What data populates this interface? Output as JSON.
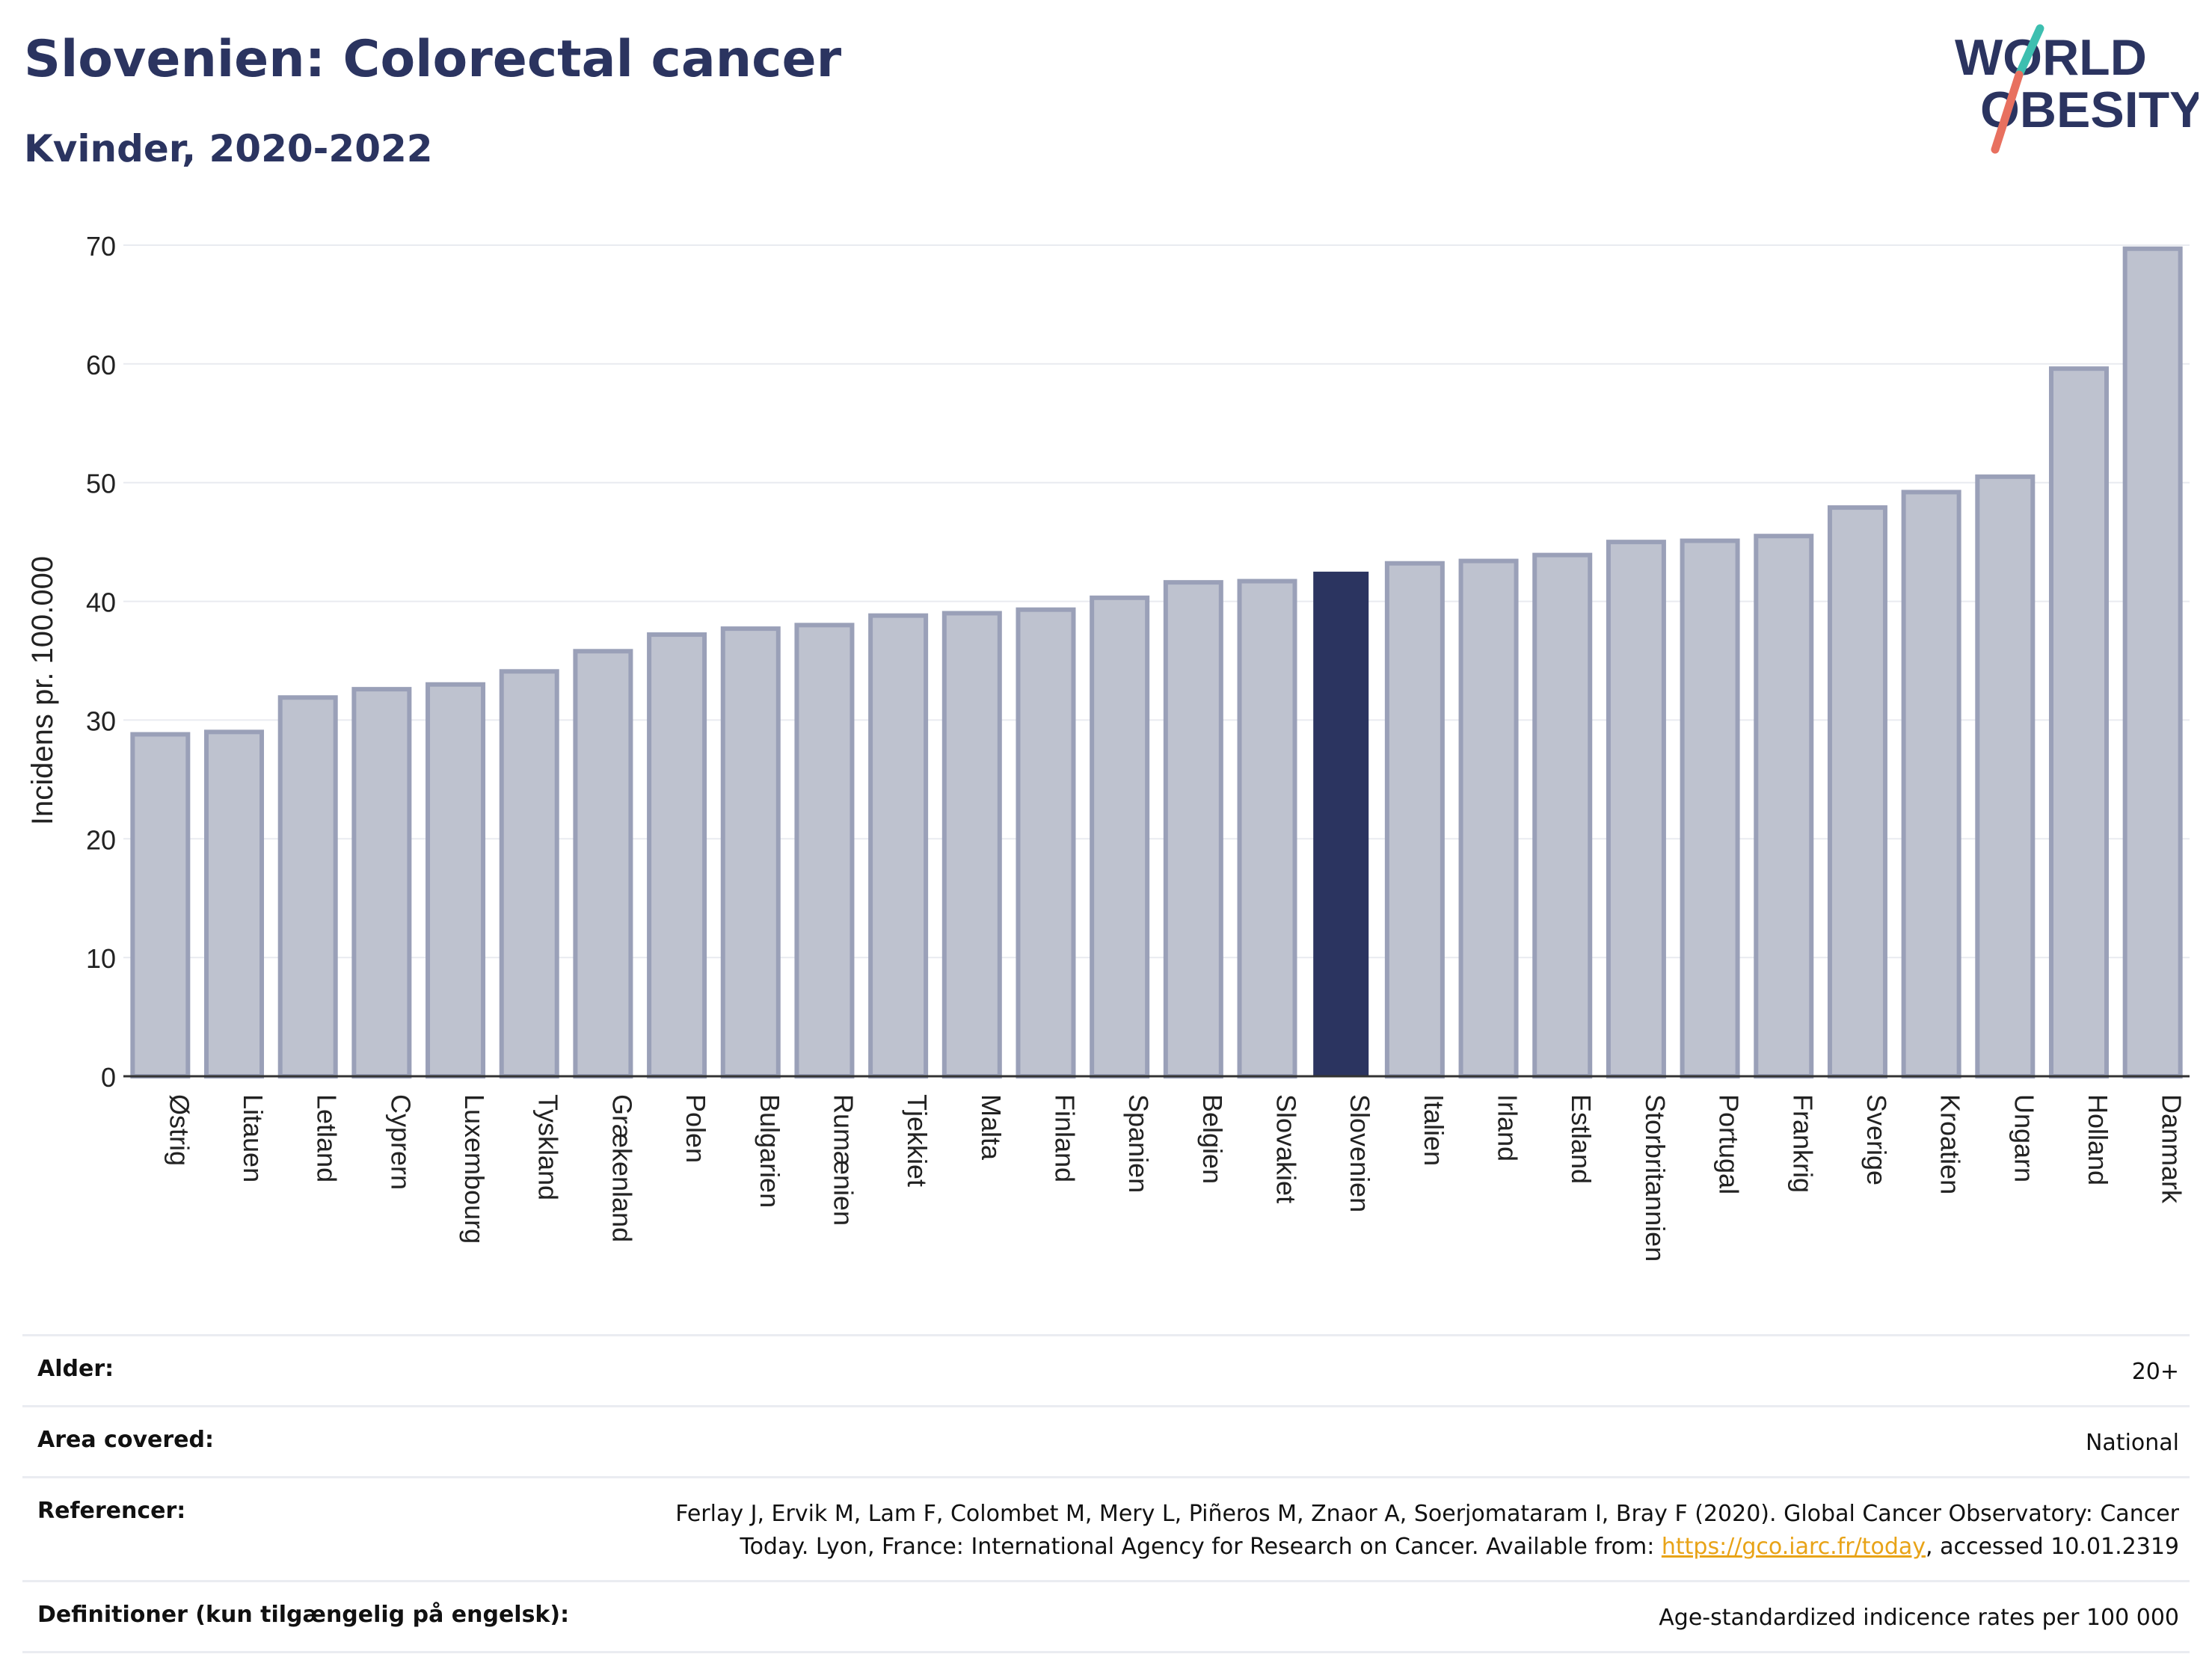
{
  "header": {
    "title": "Slovenien: Colorectal cancer",
    "subtitle": "Kvinder, 2020-2022",
    "logo_line1": "WORLD",
    "logo_line2": "OBESITY"
  },
  "colors": {
    "highlight_bar": "#2b3460",
    "other_bar_fill": "#bec2cf",
    "other_bar_border": "#9aa0b8",
    "title": "#2b3460",
    "link": "#e8a317",
    "logo_teal": "#3dbfb0",
    "logo_coral": "#e8705f"
  },
  "chart_data": {
    "type": "bar",
    "title": "Slovenien: Colorectal cancer",
    "subtitle": "Kvinder, 2020-2022",
    "xlabel": "",
    "ylabel": "Incidens pr. 100.000",
    "ylim": [
      0,
      70
    ],
    "yticks": [
      0,
      10,
      20,
      30,
      40,
      50,
      60,
      70
    ],
    "grid": true,
    "highlight": "Slovenien",
    "categories": [
      "Østrig",
      "Litauen",
      "Letland",
      "Cyprern",
      "Luxembourg",
      "Tyskland",
      "Grækenland",
      "Polen",
      "Bulgarien",
      "Rumænien",
      "Tjekkiet",
      "Malta",
      "Finland",
      "Spanien",
      "Belgien",
      "Slovakiet",
      "Slovenien",
      "Italien",
      "Irland",
      "Estland",
      "Storbritannien",
      "Portugal",
      "Frankrig",
      "Sverige",
      "Kroatien",
      "Ungarn",
      "Holland",
      "Danmark"
    ],
    "values": [
      28.8,
      29.0,
      31.9,
      32.6,
      33.0,
      34.1,
      35.8,
      37.2,
      37.7,
      38.0,
      38.8,
      39.0,
      39.3,
      40.3,
      41.6,
      41.7,
      42.5,
      43.2,
      43.4,
      43.9,
      45.0,
      45.1,
      45.5,
      47.9,
      49.2,
      50.5,
      59.6,
      69.7
    ]
  },
  "info_table": [
    {
      "key": "Alder:",
      "value": "20+"
    },
    {
      "key": "Area covered:",
      "value": "National"
    },
    {
      "key": "Referencer:",
      "value_before_link": "Ferlay J, Ervik M, Lam F, Colombet M, Mery L, Piñeros M, Znaor A, Soerjomataram I, Bray F (2020). Global Cancer Observatory: Cancer Today. Lyon, France: International Agency for Research on Cancer. Available from: ",
      "link_text": "https://gco.iarc.fr/today",
      "value_after_link": ", accessed 10.01.2319"
    },
    {
      "key": "Definitioner (kun tilgængelig på engelsk):",
      "value": "Age-standardized indicence rates per 100 000"
    }
  ]
}
